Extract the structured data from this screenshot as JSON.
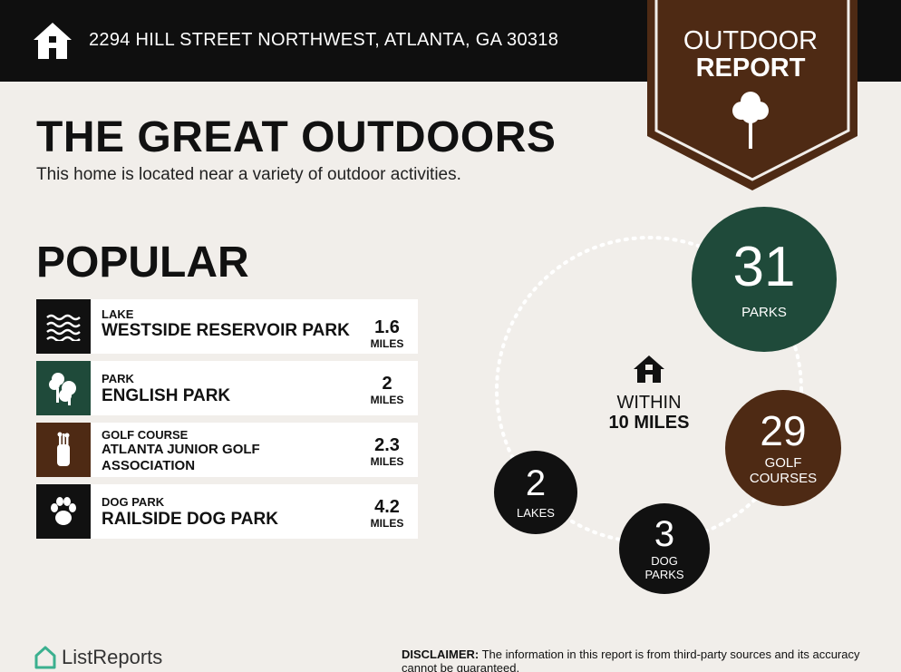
{
  "header": {
    "address": "2294 HILL STREET NORTHWEST, ATLANTA, GA 30318",
    "home_icon": "house-icon"
  },
  "badge": {
    "line1": "OUTDOOR",
    "line2": "REPORT",
    "icon": "tree-icon",
    "color": "#4e2a14"
  },
  "main": {
    "title": "THE GREAT OUTDOORS",
    "subtitle": "This home is located near a variety of outdoor activities.",
    "popular_heading": "POPULAR"
  },
  "popular": [
    {
      "type": "LAKE",
      "name": "WESTSIDE RESERVOIR PARK",
      "distance": "1.6",
      "unit": "MILES",
      "icon": "water-waves-icon",
      "color": "#111111"
    },
    {
      "type": "PARK",
      "name": "ENGLISH PARK",
      "distance": "2",
      "unit": "MILES",
      "icon": "park-trees-icon",
      "color": "#1f4a3a"
    },
    {
      "type": "GOLF COURSE",
      "name": "ATLANTA JUNIOR GOLF ASSOCIATION",
      "distance": "2.3",
      "unit": "MILES",
      "icon": "golf-bag-icon",
      "color": "#4e2a14"
    },
    {
      "type": "DOG PARK",
      "name": "RAILSIDE DOG PARK",
      "distance": "4.2",
      "unit": "MILES",
      "icon": "paw-icon",
      "color": "#111111"
    }
  ],
  "summary": {
    "within_line1": "WITHIN",
    "within_line2": "10 MILES",
    "stats": [
      {
        "value": "31",
        "label": "PARKS",
        "color": "#1f4a3a"
      },
      {
        "value": "29",
        "label": "GOLF COURSES",
        "color": "#4e2a14"
      },
      {
        "value": "3",
        "label": "DOG PARKS",
        "color": "#111111"
      },
      {
        "value": "2",
        "label": "LAKES",
        "color": "#111111"
      }
    ]
  },
  "footer": {
    "brand": "ListReports",
    "disclaimer_label": "DISCLAIMER:",
    "disclaimer_text": "The information in this report is from third-party sources and its accuracy cannot be guaranteed."
  }
}
